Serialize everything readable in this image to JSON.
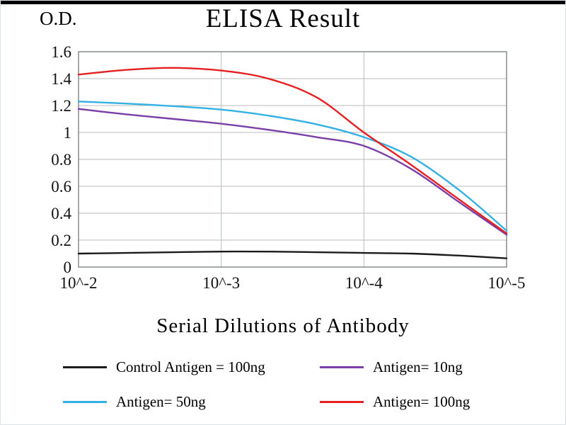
{
  "page": {
    "y_axis_title": "O.D.",
    "title": "ELISA Result",
    "x_axis_label": "Serial Dilutions  of Antibody"
  },
  "chart_data": {
    "type": "line",
    "title": "ELISA Result",
    "xlabel": "Serial Dilutions of Antibody",
    "ylabel": "O.D.",
    "grid": true,
    "legend_position": "bottom",
    "ylim": [
      0,
      1.6
    ],
    "y_ticks": [
      0,
      0.2,
      0.4,
      0.6,
      0.8,
      1,
      1.2,
      1.4,
      1.6
    ],
    "x_tick_labels": [
      "10^-2",
      "10^-3",
      "10^-4",
      "10^-5"
    ],
    "x_decades": [
      0,
      1,
      2,
      3
    ],
    "x": [
      0,
      0.33,
      0.67,
      1,
      1.33,
      1.67,
      2,
      2.33,
      2.67,
      3
    ],
    "series": [
      {
        "name": "Control Antigen = 100ng",
        "color": "#1c1c1c",
        "values": [
          0.1,
          0.105,
          0.11,
          0.115,
          0.115,
          0.11,
          0.105,
          0.1,
          0.085,
          0.065
        ]
      },
      {
        "name": "Antigen= 10ng",
        "color": "#7a3fa8",
        "values": [
          1.175,
          1.135,
          1.1,
          1.065,
          1.02,
          0.965,
          0.9,
          0.73,
          0.48,
          0.24
        ]
      },
      {
        "name": "Antigen= 50ng",
        "color": "#33b1e4",
        "values": [
          1.23,
          1.215,
          1.195,
          1.17,
          1.125,
          1.06,
          0.965,
          0.82,
          0.57,
          0.27
        ]
      },
      {
        "name": "Antigen= 100ng",
        "color": "#e62020",
        "values": [
          1.43,
          1.465,
          1.48,
          1.46,
          1.4,
          1.26,
          1.0,
          0.76,
          0.5,
          0.25
        ]
      }
    ],
    "colors": {
      "grid_line": "#b8bcbe",
      "plot_border": "#7f8486",
      "tick_text": "#111111"
    }
  }
}
